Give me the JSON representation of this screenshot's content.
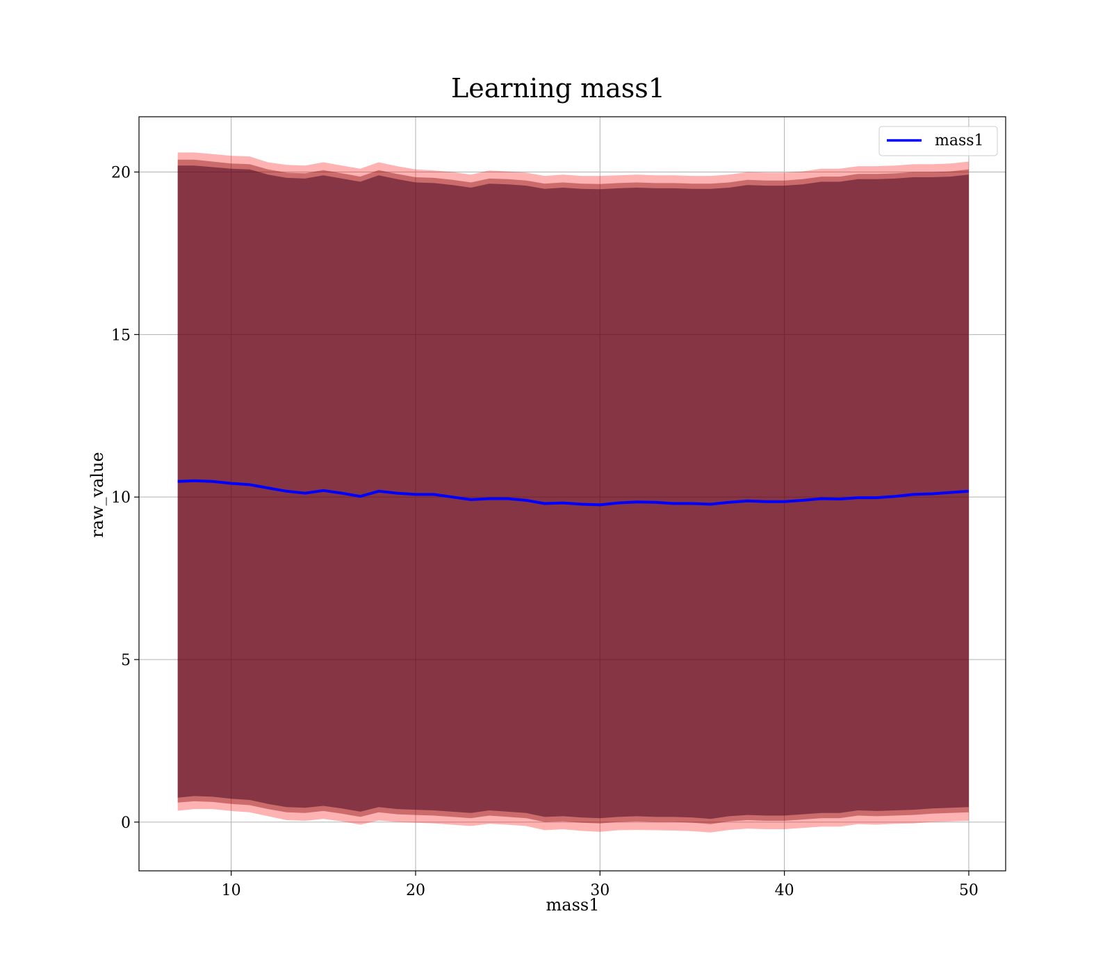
{
  "chart_data": {
    "type": "area",
    "title": "Learning mass1",
    "xlabel": "mass1",
    "ylabel": "raw_value",
    "xlim": [
      5,
      52
    ],
    "ylim": [
      -1.5,
      21.7
    ],
    "xticks": [
      10,
      20,
      30,
      40,
      50
    ],
    "yticks": [
      0,
      5,
      10,
      15,
      20
    ],
    "grid": true,
    "legend": {
      "placement": "top-right",
      "entries": [
        "mass1"
      ]
    },
    "x": [
      7.1,
      8,
      9,
      10,
      11,
      12,
      13,
      14,
      15,
      16,
      17,
      18,
      19,
      20,
      21,
      22,
      23,
      24,
      25,
      26,
      27,
      28,
      29,
      30,
      31,
      32,
      33,
      34,
      35,
      36,
      37,
      38,
      39,
      40,
      41,
      42,
      43,
      44,
      45,
      46,
      47,
      48,
      49,
      50
    ],
    "series": [
      {
        "name": "mass1",
        "color": "#0000ff",
        "values": [
          10.48,
          10.5,
          10.48,
          10.42,
          10.38,
          10.28,
          10.18,
          10.12,
          10.2,
          10.12,
          10.02,
          10.18,
          10.12,
          10.08,
          10.08,
          10.0,
          9.92,
          9.95,
          9.95,
          9.9,
          9.8,
          9.82,
          9.78,
          9.76,
          9.82,
          9.85,
          9.84,
          9.8,
          9.8,
          9.78,
          9.84,
          9.88,
          9.86,
          9.86,
          9.9,
          9.95,
          9.94,
          9.98,
          9.98,
          10.02,
          10.08,
          10.1,
          10.14,
          10.18
        ]
      }
    ],
    "bands": [
      {
        "color": "#ff0000",
        "opacity": 0.3,
        "upper": [
          20.6,
          20.6,
          20.55,
          20.5,
          20.48,
          20.3,
          20.22,
          20.2,
          20.3,
          20.2,
          20.1,
          20.3,
          20.18,
          20.08,
          20.05,
          20.0,
          19.92,
          20.05,
          20.02,
          19.98,
          19.88,
          19.92,
          19.88,
          19.88,
          19.9,
          19.92,
          19.9,
          19.9,
          19.88,
          19.88,
          19.92,
          20.0,
          19.98,
          19.98,
          20.02,
          20.1,
          20.1,
          20.18,
          20.18,
          20.2,
          20.24,
          20.24,
          20.26,
          20.32
        ],
        "lower": [
          0.35,
          0.4,
          0.4,
          0.34,
          0.3,
          0.18,
          0.06,
          0.04,
          0.1,
          0.02,
          -0.08,
          0.05,
          0.0,
          -0.02,
          -0.04,
          -0.08,
          -0.12,
          -0.05,
          -0.08,
          -0.12,
          -0.25,
          -0.22,
          -0.27,
          -0.3,
          -0.25,
          -0.24,
          -0.25,
          -0.26,
          -0.28,
          -0.32,
          -0.24,
          -0.2,
          -0.22,
          -0.22,
          -0.18,
          -0.14,
          -0.14,
          -0.06,
          -0.08,
          -0.05,
          -0.04,
          0.0,
          0.02,
          0.04
        ]
      },
      {
        "color": "#800000",
        "opacity": 0.4,
        "upper": [
          20.38,
          20.38,
          20.32,
          20.26,
          20.24,
          20.08,
          19.98,
          19.96,
          20.06,
          19.96,
          19.86,
          20.06,
          19.94,
          19.84,
          19.82,
          19.76,
          19.68,
          19.8,
          19.78,
          19.74,
          19.64,
          19.68,
          19.64,
          19.63,
          19.66,
          19.68,
          19.66,
          19.66,
          19.64,
          19.64,
          19.68,
          19.76,
          19.74,
          19.74,
          19.78,
          19.86,
          19.86,
          19.94,
          19.94,
          19.96,
          20.0,
          20.0,
          20.02,
          20.08
        ],
        "lower": [
          0.6,
          0.64,
          0.62,
          0.56,
          0.52,
          0.4,
          0.3,
          0.28,
          0.34,
          0.26,
          0.16,
          0.3,
          0.24,
          0.22,
          0.2,
          0.16,
          0.12,
          0.2,
          0.16,
          0.12,
          0.0,
          0.02,
          -0.02,
          -0.04,
          0.0,
          0.02,
          0.0,
          0.0,
          -0.02,
          -0.06,
          0.02,
          0.06,
          0.04,
          0.04,
          0.08,
          0.12,
          0.12,
          0.2,
          0.18,
          0.2,
          0.22,
          0.26,
          0.28,
          0.3
        ]
      },
      {
        "color": "#400020",
        "opacity": 0.5,
        "upper": [
          20.2,
          20.2,
          20.15,
          20.1,
          20.08,
          19.92,
          19.82,
          19.8,
          19.9,
          19.8,
          19.7,
          19.9,
          19.78,
          19.68,
          19.66,
          19.6,
          19.52,
          19.64,
          19.62,
          19.58,
          19.48,
          19.52,
          19.48,
          19.47,
          19.5,
          19.52,
          19.5,
          19.5,
          19.48,
          19.48,
          19.52,
          19.6,
          19.58,
          19.58,
          19.62,
          19.7,
          19.7,
          19.78,
          19.78,
          19.8,
          19.84,
          19.84,
          19.86,
          19.92
        ],
        "lower": [
          0.75,
          0.8,
          0.78,
          0.72,
          0.68,
          0.56,
          0.46,
          0.44,
          0.5,
          0.42,
          0.32,
          0.46,
          0.4,
          0.38,
          0.36,
          0.32,
          0.28,
          0.36,
          0.32,
          0.28,
          0.16,
          0.18,
          0.14,
          0.12,
          0.16,
          0.18,
          0.16,
          0.16,
          0.14,
          0.1,
          0.18,
          0.22,
          0.2,
          0.2,
          0.24,
          0.28,
          0.28,
          0.36,
          0.34,
          0.36,
          0.38,
          0.42,
          0.44,
          0.46
        ]
      }
    ]
  }
}
